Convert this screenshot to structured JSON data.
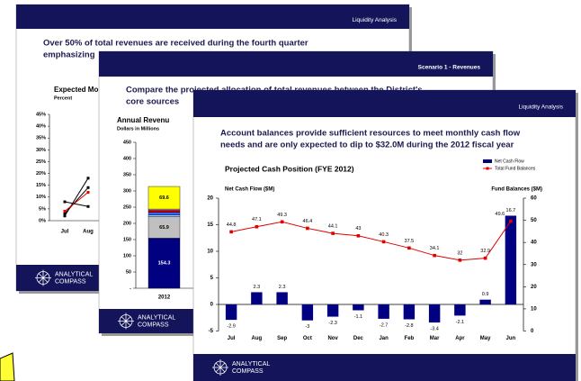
{
  "slides": [
    {
      "header": "Liquidity Analysis",
      "title_lines": [
        "Over 50% of total revenues are received during the fourth quarter",
        "emphasizing"
      ],
      "logo": [
        "ANALYTICAL",
        "COMPASS"
      ]
    },
    {
      "header": "Scenario 1 - Revenues",
      "title_lines": [
        "Compare the projected allocation of total revenues between the District's",
        "core sources"
      ],
      "logo": [
        "ANALYTICAL",
        "COMPASS"
      ]
    },
    {
      "header": "Liquidity Analysis",
      "title_lines": [
        "Account balances provide sufficient resources to meet monthly cash flow",
        "needs and are only expected to dip to $32.0M during the 2012 fiscal year"
      ],
      "logo": [
        "ANALYTICAL",
        "COMPASS"
      ]
    }
  ],
  "chart_data": [
    {
      "type": "line",
      "title": "Expected Mo",
      "subtitle": "Percent",
      "categories": [
        "Jul",
        "Aug"
      ],
      "series": [
        {
          "color": "#000000",
          "values": [
            2,
            18
          ]
        },
        {
          "color": "#000000",
          "values": [
            3,
            14
          ]
        },
        {
          "color": "#e00000",
          "values": [
            4,
            12
          ]
        },
        {
          "color": "#000000",
          "values": [
            8,
            6
          ]
        }
      ],
      "ylim": [
        0,
        45
      ],
      "yticks": [
        {
          "value": 0,
          "label": "0%"
        },
        {
          "value": 5,
          "label": "5%"
        },
        {
          "value": 10,
          "label": "10%"
        },
        {
          "value": 15,
          "label": "15%"
        },
        {
          "value": 20,
          "label": "20%"
        },
        {
          "value": 25,
          "label": "25%"
        },
        {
          "value": 30,
          "label": "30%"
        },
        {
          "value": 35,
          "label": "35%"
        },
        {
          "value": 40,
          "label": "40%"
        },
        {
          "value": 45,
          "label": "45%"
        }
      ]
    },
    {
      "type": "stacked_bar",
      "title": "Annual Revenu",
      "subtitle": "Dollars in Millions",
      "categories": [
        "2012"
      ],
      "series": [
        {
          "color": "#000080",
          "values": [
            154.3
          ],
          "value_labels": [
            "154.3"
          ]
        },
        {
          "color": "#c0c0c0",
          "values": [
            65.9
          ],
          "value_labels": [
            "65.9"
          ]
        },
        {
          "color": "#99ccff",
          "values": [
            6
          ]
        },
        {
          "color": "#3366ff",
          "values": [
            8
          ]
        },
        {
          "color": "#cc0000",
          "values": [
            6
          ]
        },
        {
          "color": "#ff99cc",
          "values": [
            4
          ]
        },
        {
          "color": "#ffff00",
          "values": [
            69.6
          ],
          "value_labels": [
            "69.6"
          ]
        }
      ],
      "ylim": [
        0,
        450
      ],
      "yticks": [
        {
          "value": 0,
          "label": "-"
        },
        50,
        100,
        150,
        200,
        250,
        300,
        350,
        400,
        450
      ]
    },
    {
      "type": "bar_line",
      "title": "Projected Cash Position (FYE 2012)",
      "y_label": "Net Cash Flow ($M)",
      "y2_label": "Fund Balances ($M)",
      "categories": [
        "Jul",
        "Aug",
        "Sep",
        "Oct",
        "Nov",
        "Dec",
        "Jan",
        "Feb",
        "Mar",
        "Apr",
        "May",
        "Jun"
      ],
      "series": [
        {
          "name": "Net Cash Flow",
          "type": "bar",
          "color": "#000080",
          "values": [
            -2.9,
            2.3,
            2.3,
            -3.0,
            -2.3,
            -1.1,
            -2.7,
            -2.8,
            -3.4,
            -2.1,
            0.9,
            16.7
          ]
        },
        {
          "name": "Total Fund Balances",
          "type": "line",
          "axis": "y2",
          "color": "#e00000",
          "values": [
            44.8,
            47.1,
            49.3,
            46.4,
            44.1,
            43.0,
            40.3,
            37.5,
            34.1,
            32.0,
            32.9,
            49.6
          ]
        }
      ],
      "ylim": [
        -5,
        20
      ],
      "yticks": [
        -5,
        0,
        5,
        10,
        15,
        20
      ],
      "y2lim": [
        0,
        60
      ],
      "y2ticks": [
        0,
        10,
        20,
        30,
        40,
        50,
        60
      ],
      "legend": "top-right"
    }
  ]
}
